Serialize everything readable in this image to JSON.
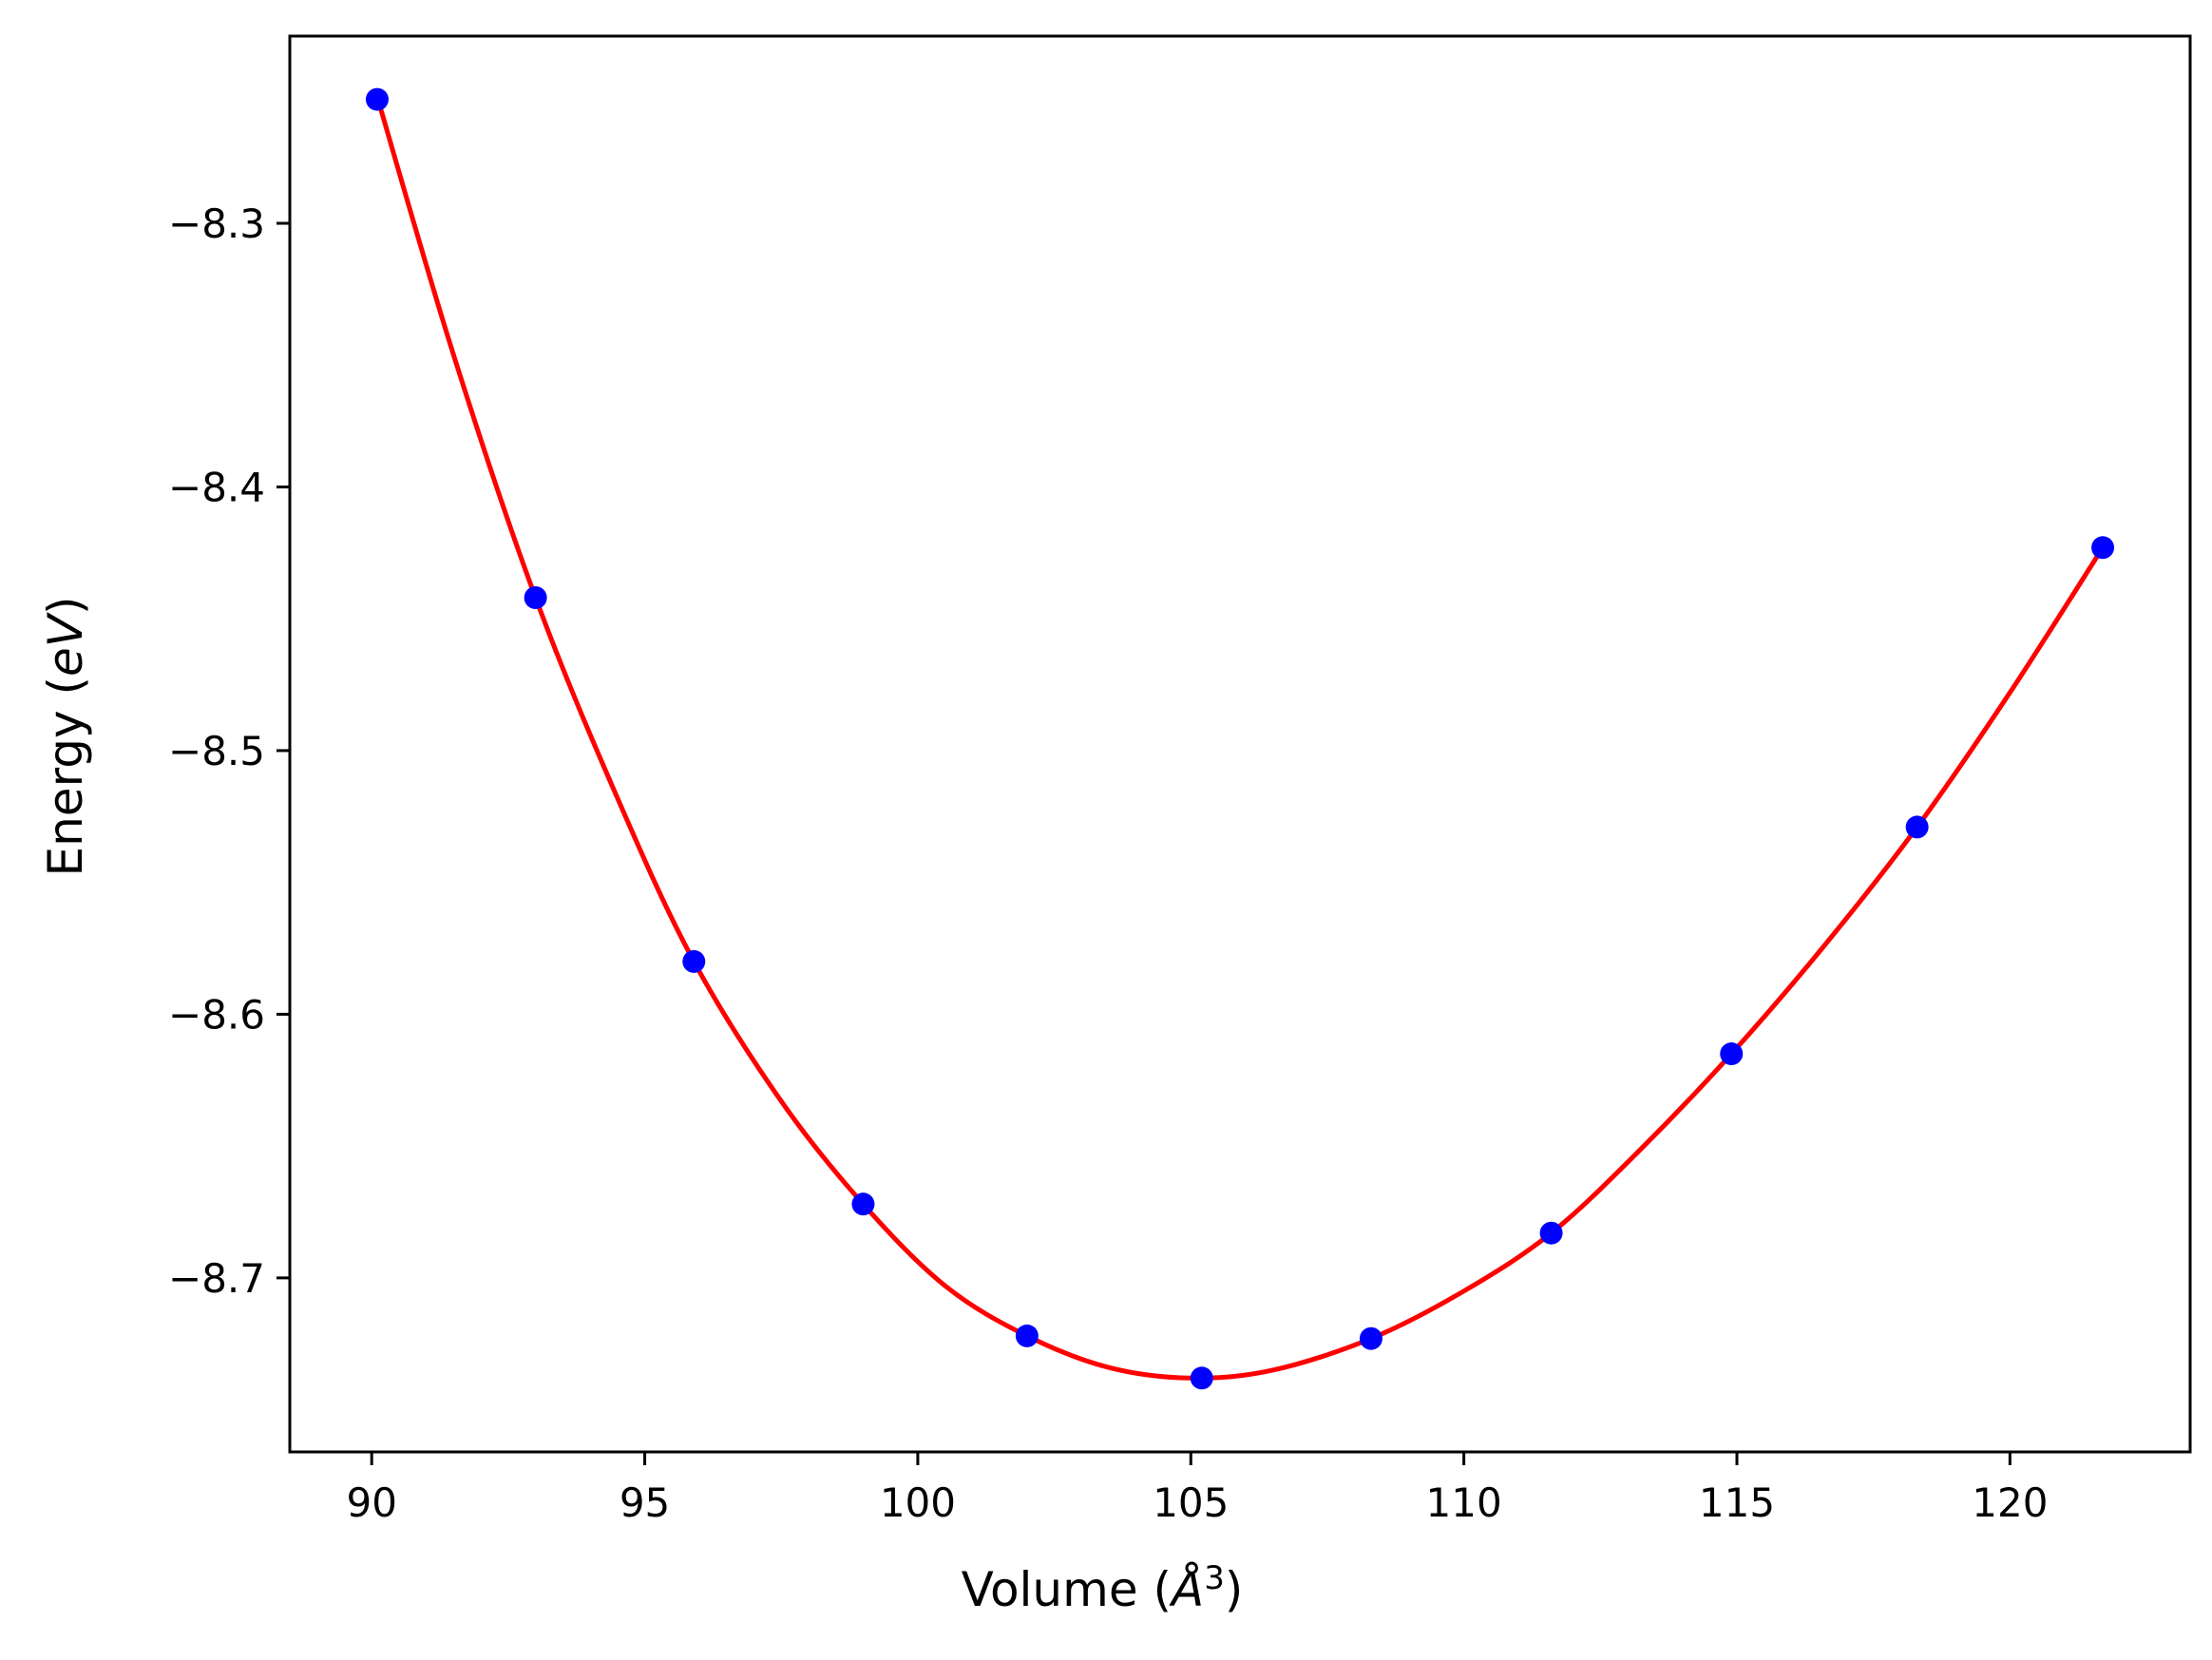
{
  "chart_data": {
    "type": "line",
    "title": "",
    "xlabel": "Volume (Å³)",
    "ylabel": "Energy (eV)",
    "xlabel_parts": {
      "prefix": "Volume (",
      "symbol": "Å",
      "superscript": "3",
      "suffix": ")"
    },
    "ylabel_parts": {
      "prefix": "Energy (",
      "symbol": "eV",
      "suffix": ")"
    },
    "xlim": [
      88.5,
      123.3
    ],
    "ylim": [
      -8.766,
      -8.229
    ],
    "grid": false,
    "legend": "none",
    "x_ticks": [
      90,
      95,
      100,
      105,
      110,
      115,
      120
    ],
    "x_tick_labels": [
      "90",
      "95",
      "100",
      "105",
      "110",
      "115",
      "120"
    ],
    "y_ticks": [
      -8.3,
      -8.4,
      -8.5,
      -8.6,
      -8.7
    ],
    "y_tick_labels": [
      "−8.3",
      "−8.4",
      "−8.5",
      "−8.6",
      "−8.7"
    ],
    "series": [
      {
        "role": "data",
        "style": "markers",
        "color": "#0000ff",
        "x": [
          90.1,
          93.0,
          95.9,
          99.0,
          102.0,
          105.2,
          108.3,
          111.6,
          114.9,
          118.3,
          121.7
        ],
        "y": [
          -8.253,
          -8.442,
          -8.58,
          -8.672,
          -8.722,
          -8.738,
          -8.723,
          -8.683,
          -8.615,
          -8.529,
          -8.423
        ]
      },
      {
        "role": "fit",
        "style": "line",
        "color": "#ff0000",
        "x": [
          90.1,
          91.5,
          93.0,
          94.5,
          95.9,
          97.5,
          99.0,
          100.5,
          102.0,
          103.5,
          105.0,
          106.5,
          108.3,
          110.0,
          111.6,
          113.2,
          114.9,
          116.6,
          118.3,
          120.0,
          121.7
        ],
        "y": [
          -8.252,
          -8.35,
          -8.442,
          -8.518,
          -8.58,
          -8.633,
          -8.672,
          -8.703,
          -8.722,
          -8.734,
          -8.738,
          -8.735,
          -8.723,
          -8.705,
          -8.683,
          -8.652,
          -8.615,
          -8.574,
          -8.529,
          -8.478,
          -8.423
        ]
      }
    ]
  },
  "colors": {
    "data_points": "#0000ff",
    "fit_line": "#ff0000",
    "axes": "#000000"
  }
}
